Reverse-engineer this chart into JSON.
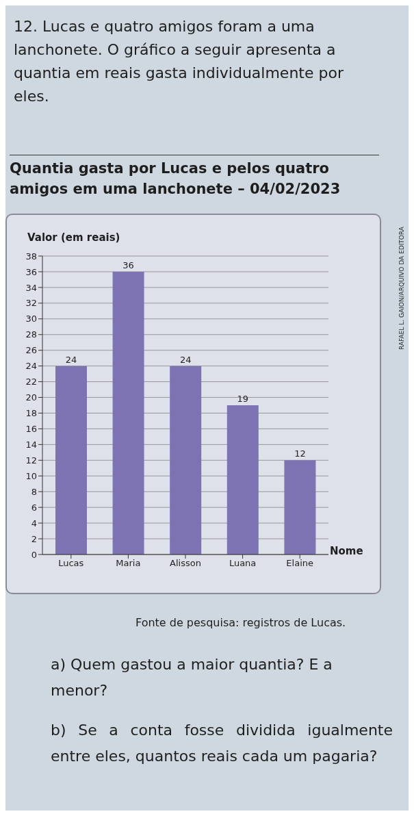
{
  "chart_data": {
    "type": "bar",
    "title": "Quantia gasta por Lucas e pelos quatro amigos em uma lanchonete – 04/02/2023",
    "ylabel": "Valor (em reais)",
    "xlabel": "Nome",
    "categories": [
      "Lucas",
      "Maria",
      "Alisson",
      "Luana",
      "Elaine"
    ],
    "values": [
      24,
      36,
      24,
      19,
      12
    ],
    "color": "#7d73b3",
    "ylim": [
      0,
      38
    ],
    "yticks": [
      0,
      2,
      4,
      6,
      8,
      10,
      12,
      14,
      16,
      18,
      20,
      22,
      24,
      26,
      28,
      30,
      32,
      34,
      36,
      38
    ],
    "grid": "y",
    "data_labels": true,
    "annotations": [
      "12. Lucas e quatro amigos foram a uma lanchonete. O gráfico a seguir apresenta a quantia em reais gasta individualmente por eles.",
      "Fonte de pesquisa: registros de Lucas.",
      "a) Quem gastou a maior quantia? E a menor?",
      "b) Se a conta fosse dividida igualmente entre eles, quantos reais cada um pagaria?",
      "RAFAEL L. GAION/ARQUIVO DA EDITORA"
    ]
  }
}
